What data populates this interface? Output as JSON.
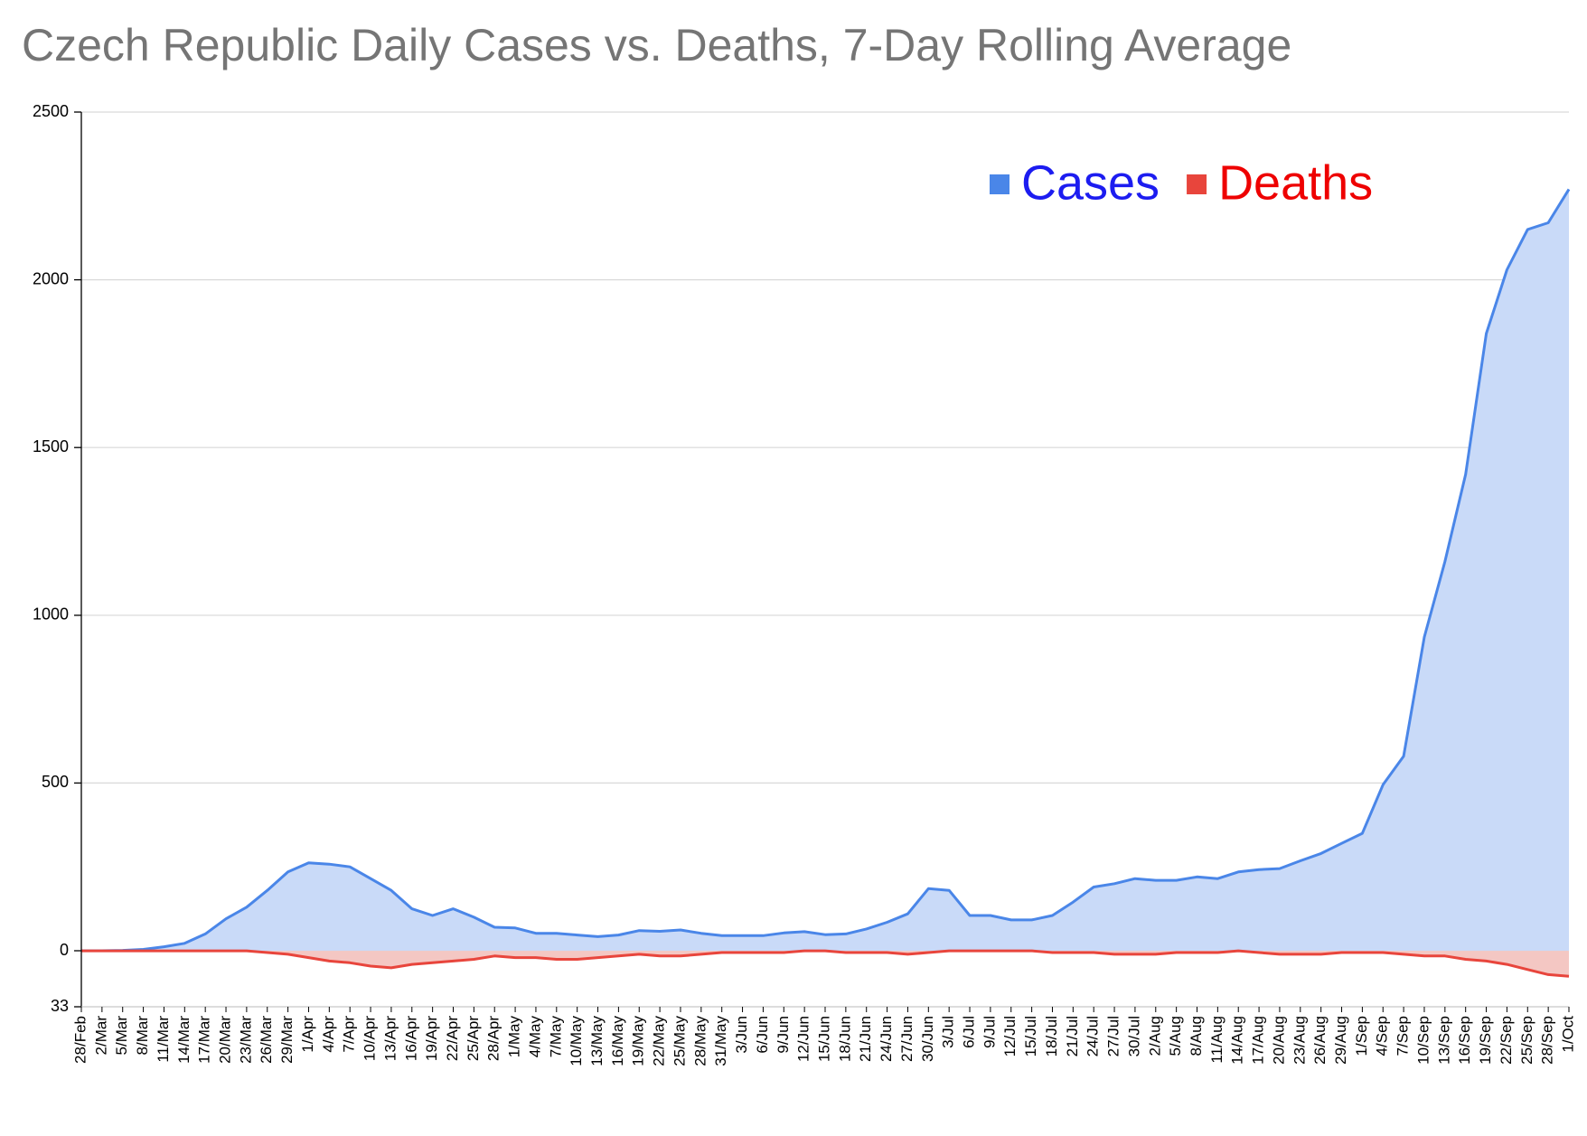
{
  "chart_data": {
    "type": "area",
    "title": "Czech Republic Daily Cases vs. Deaths, 7-Day Rolling Average",
    "categories": [
      "28/Feb",
      "2/Mar",
      "5/Mar",
      "8/Mar",
      "11/Mar",
      "14/Mar",
      "17/Mar",
      "20/Mar",
      "23/Mar",
      "26/Mar",
      "29/Mar",
      "1/Apr",
      "4/Apr",
      "7/Apr",
      "10/Apr",
      "13/Apr",
      "16/Apr",
      "19/Apr",
      "22/Apr",
      "25/Apr",
      "28/Apr",
      "1/May",
      "4/May",
      "7/May",
      "10/May",
      "13/May",
      "16/May",
      "19/May",
      "22/May",
      "25/May",
      "28/May",
      "31/May",
      "3/Jun",
      "6/Jun",
      "9/Jun",
      "12/Jun",
      "15/Jun",
      "18/Jun",
      "21/Jun",
      "24/Jun",
      "27/Jun",
      "30/Jun",
      "3/Jul",
      "6/Jul",
      "9/Jul",
      "12/Jul",
      "15/Jul",
      "18/Jul",
      "21/Jul",
      "24/Jul",
      "27/Jul",
      "30/Jul",
      "2/Aug",
      "5/Aug",
      "8/Aug",
      "11/Aug",
      "14/Aug",
      "17/Aug",
      "20/Aug",
      "23/Aug",
      "26/Aug",
      "29/Aug",
      "1/Sep",
      "4/Sep",
      "7/Sep",
      "10/Sep",
      "13/Sep",
      "16/Sep",
      "19/Sep",
      "22/Sep",
      "25/Sep",
      "28/Sep",
      "1/Oct"
    ],
    "series": [
      {
        "name": "Cases",
        "color": "#4a86e8",
        "fill": "#c9daf8",
        "label_color": "#1c1cf0",
        "values": [
          0,
          0,
          1,
          4,
          12,
          22,
          50,
          95,
          130,
          180,
          235,
          262,
          258,
          250,
          215,
          180,
          125,
          105,
          125,
          100,
          70,
          68,
          52,
          52,
          47,
          42,
          47,
          60,
          58,
          62,
          52,
          45,
          45,
          45,
          53,
          57,
          48,
          50,
          65,
          85,
          110,
          185,
          180,
          105,
          105,
          92,
          92,
          105,
          145,
          190,
          200,
          215,
          210,
          210,
          220,
          215,
          235,
          242,
          245,
          268,
          290,
          320,
          350,
          495,
          580,
          935,
          1160,
          1420,
          1840,
          2030,
          2150,
          2170,
          2270
        ]
      },
      {
        "name": "Deaths",
        "color": "#e8453c",
        "fill": "#f4c7c3",
        "label_color": "#ee0000",
        "axis": "y2",
        "values": [
          0,
          0,
          0,
          0,
          0,
          0,
          0,
          0,
          0,
          -1,
          -2,
          -4,
          -6,
          -7,
          -9,
          -10,
          -8,
          -7,
          -6,
          -5,
          -3,
          -4,
          -4,
          -5,
          -5,
          -4,
          -3,
          -2,
          -3,
          -3,
          -2,
          -1,
          -1,
          -1,
          -1,
          0,
          0,
          -1,
          -1,
          -1,
          -2,
          -1,
          0,
          0,
          0,
          0,
          0,
          -1,
          -1,
          -1,
          -2,
          -2,
          -2,
          -1,
          -1,
          -1,
          0,
          -1,
          -2,
          -2,
          -2,
          -1,
          -1,
          -1,
          -2,
          -3,
          -3,
          -5,
          -6,
          -8,
          -11,
          -14,
          -15
        ]
      }
    ],
    "ylim": [
      -167,
      2500
    ],
    "yticks": [
      0,
      500,
      1000,
      1500,
      2000,
      2500
    ],
    "y2lim": [
      -33,
      495
    ],
    "y2ticks": [
      {
        "value": -33,
        "label": "33"
      }
    ],
    "grid": true,
    "legend": "top-right"
  }
}
